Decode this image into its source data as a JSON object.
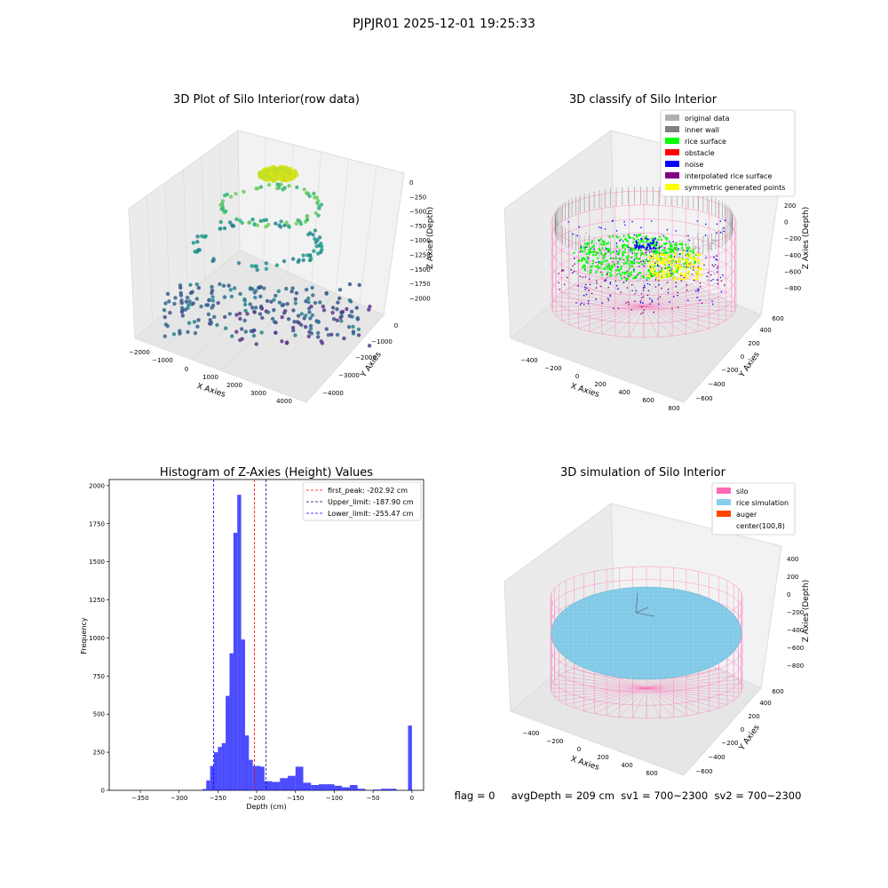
{
  "figure": {
    "suptitle": "PJPJR01 2025-12-01 19:25:33"
  },
  "chart_data": [
    {
      "type": "scatter",
      "title": "3D Plot of Silo Interior(row data)",
      "xlabel": "X Axies",
      "ylabel": "Y Axies",
      "zlabel": "Z Axies (Depth)",
      "xlim": [
        -2000,
        4500
      ],
      "ylim": [
        -4500,
        500
      ],
      "zlim": [
        -2100,
        100
      ],
      "xticks": [
        "−2000",
        "−1000",
        "0",
        "1000",
        "2000",
        "3000",
        "4000"
      ],
      "yticks": [
        "−4000",
        "−3000",
        "−2000",
        "−1000",
        "0"
      ],
      "zticks": [
        "0",
        "−250",
        "−500",
        "−750",
        "−1000",
        "−1250",
        "−1500",
        "−1750",
        "−2000"
      ],
      "colormap": "viridis (colored by depth)"
    },
    {
      "type": "scatter",
      "title": "3D classify of Silo Interior",
      "xlabel": "X Axies",
      "ylabel": "Y Axies",
      "zlabel": "Z Axies (Depth)",
      "xlim": [
        -500,
        800
      ],
      "ylim": [
        -600,
        600
      ],
      "zlim": [
        -900,
        300
      ],
      "xticks": [
        "−400",
        "−200",
        "0",
        "200",
        "400",
        "600",
        "800"
      ],
      "yticks": [
        "−600",
        "−400",
        "−200",
        "0",
        "200",
        "400",
        "600"
      ],
      "zticks": [
        "200",
        "0",
        "−200",
        "−400",
        "−600",
        "−800"
      ],
      "legend_position": "top-right",
      "legend": [
        {
          "label": "original data",
          "color": "#b0b0b0"
        },
        {
          "label": "inner wall",
          "color": "#808080"
        },
        {
          "label": "rice surface",
          "color": "#00ff00"
        },
        {
          "label": "obstacle",
          "color": "#ff0000"
        },
        {
          "label": "noise",
          "color": "#0000ff"
        },
        {
          "label": "interpolated rice surface",
          "color": "#800080"
        },
        {
          "label": "symmetric generated points",
          "color": "#ffff00"
        }
      ],
      "silo_color": "#ff69b4"
    },
    {
      "type": "bar",
      "title": "Histogram of Z-Axies (Height) Values",
      "xlabel": "Depth (cm)",
      "ylabel": "Frequency",
      "xlim": [
        -390,
        15
      ],
      "ylim": [
        0,
        2040
      ],
      "xticks": [
        -350,
        -300,
        -250,
        -200,
        -150,
        -100,
        -50,
        0
      ],
      "yticks": [
        0,
        250,
        500,
        750,
        1000,
        1250,
        1500,
        1750,
        2000
      ],
      "bar_color": "#0000ff",
      "bins": [
        {
          "x0": -270,
          "x1": -265,
          "v": 8
        },
        {
          "x0": -265,
          "x1": -260,
          "v": 65
        },
        {
          "x0": -260,
          "x1": -255,
          "v": 160
        },
        {
          "x0": -255,
          "x1": -250,
          "v": 250
        },
        {
          "x0": -250,
          "x1": -245,
          "v": 285
        },
        {
          "x0": -245,
          "x1": -240,
          "v": 310
        },
        {
          "x0": -240,
          "x1": -235,
          "v": 620
        },
        {
          "x0": -235,
          "x1": -230,
          "v": 900
        },
        {
          "x0": -230,
          "x1": -225,
          "v": 1690
        },
        {
          "x0": -225,
          "x1": -220,
          "v": 1940
        },
        {
          "x0": -220,
          "x1": -215,
          "v": 990
        },
        {
          "x0": -215,
          "x1": -210,
          "v": 360
        },
        {
          "x0": -210,
          "x1": -205,
          "v": 200
        },
        {
          "x0": -205,
          "x1": -195,
          "v": 160
        },
        {
          "x0": -195,
          "x1": -190,
          "v": 155
        },
        {
          "x0": -190,
          "x1": -180,
          "v": 60
        },
        {
          "x0": -180,
          "x1": -170,
          "v": 55
        },
        {
          "x0": -170,
          "x1": -160,
          "v": 80
        },
        {
          "x0": -160,
          "x1": -150,
          "v": 95
        },
        {
          "x0": -150,
          "x1": -140,
          "v": 155
        },
        {
          "x0": -140,
          "x1": -130,
          "v": 50
        },
        {
          "x0": -130,
          "x1": -120,
          "v": 35
        },
        {
          "x0": -120,
          "x1": -110,
          "v": 40
        },
        {
          "x0": -110,
          "x1": -100,
          "v": 40
        },
        {
          "x0": -100,
          "x1": -90,
          "v": 30
        },
        {
          "x0": -90,
          "x1": -80,
          "v": 20
        },
        {
          "x0": -80,
          "x1": -70,
          "v": 35
        },
        {
          "x0": -70,
          "x1": -60,
          "v": 10
        },
        {
          "x0": -50,
          "x1": -40,
          "v": 5
        },
        {
          "x0": -40,
          "x1": -30,
          "v": 10
        },
        {
          "x0": -30,
          "x1": -20,
          "v": 10
        },
        {
          "x0": -5,
          "x1": 0,
          "v": 425
        }
      ],
      "lines": [
        {
          "label": "first_peak: -202.92 cm",
          "x": -202.92,
          "color": "#ff0000"
        },
        {
          "label": "Upper_limit: -187.90 cm",
          "x": -187.9,
          "color": "#00008b"
        },
        {
          "label": "Lower_limit: -255.47 cm",
          "x": -255.47,
          "color": "#0000ff"
        }
      ],
      "legend_position": "top-right"
    },
    {
      "type": "scatter",
      "title": "3D simulation of Silo Interior",
      "xlabel": "X Axies",
      "ylabel": "Y Axies",
      "zlabel": "Z Axies (Depth)",
      "xlim": [
        -500,
        700
      ],
      "ylim": [
        -600,
        600
      ],
      "zlim": [
        -900,
        400
      ],
      "xticks": [
        "−400",
        "−200",
        "0",
        "200",
        "400",
        "600"
      ],
      "yticks": [
        "−600",
        "−400",
        "−200",
        "0",
        "200",
        "400",
        "600"
      ],
      "zticks": [
        "400",
        "200",
        "0",
        "−200",
        "−400",
        "−600",
        "−800"
      ],
      "legend_position": "top-right",
      "legend": [
        {
          "label": "silo",
          "color": "#ff69b4"
        },
        {
          "label": "rice simulation",
          "color": "#87ceeb"
        },
        {
          "label": "auger",
          "color": "#ff4500"
        },
        {
          "label": "center(100,8)",
          "color": "#ffffff"
        }
      ]
    }
  ],
  "status": {
    "text": "flag = 0     avgDepth = 209 cm  sv1 = 700~2300  sv2 = 700~2300"
  }
}
